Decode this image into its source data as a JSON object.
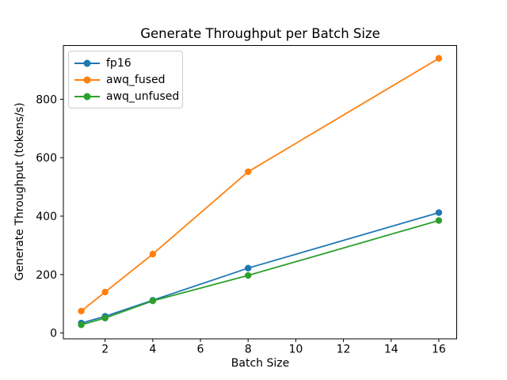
{
  "figure": {
    "background": "#ffffff",
    "text_color": "#000000",
    "axis_color": "#000000"
  },
  "chart_data": {
    "type": "line",
    "title": "Generate Throughput per Batch Size",
    "xlabel": "Batch Size",
    "ylabel": "Generate Throughput (tokens/s)",
    "x": [
      1,
      2,
      4,
      8,
      16
    ],
    "series": [
      {
        "name": "fp16",
        "color": "#1f77b4",
        "marker": "o",
        "values": [
          34,
          57,
          112,
          222,
          412
        ]
      },
      {
        "name": "awq_fused",
        "color": "#ff7f0e",
        "marker": "o",
        "values": [
          75,
          140,
          270,
          552,
          940
        ]
      },
      {
        "name": "awq_unfused",
        "color": "#2ca02c",
        "marker": "o",
        "values": [
          28,
          51,
          110,
          197,
          385
        ]
      }
    ],
    "xticks": [
      2,
      4,
      6,
      8,
      10,
      12,
      14,
      16
    ],
    "yticks": [
      0,
      200,
      400,
      600,
      800
    ],
    "xlim": [
      0.25,
      16.75
    ],
    "ylim": [
      -20,
      984
    ],
    "grid": false,
    "legend": {
      "position": "upper left"
    }
  }
}
